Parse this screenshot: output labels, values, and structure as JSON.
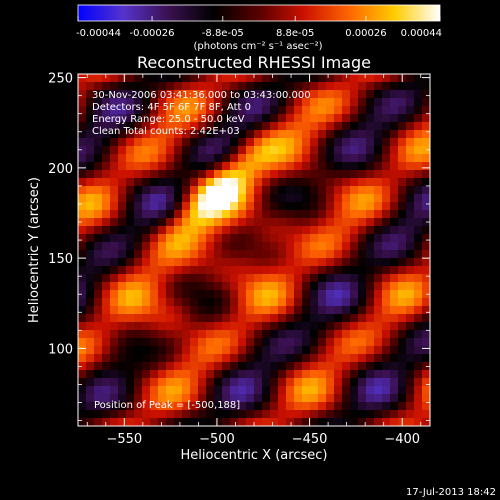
{
  "colorbar": {
    "tick_labels": [
      "-0.00044",
      "-0.00026",
      "-8.8e-05",
      "8.8e-05",
      "0.00026",
      "0.00044"
    ],
    "tick_values": [
      -0.00044,
      -0.00026,
      -8.8e-05,
      8.8e-05,
      0.00026,
      0.00044
    ],
    "range": [
      -0.00044,
      0.00044
    ],
    "unit_label": "(photons cm⁻² s⁻¹ asec⁻²)",
    "colors": [
      "#0000ff",
      "#5533cc",
      "#3a1050",
      "#000000",
      "#5a0000",
      "#cc1100",
      "#ff6600",
      "#ffcc00",
      "#ffffff"
    ]
  },
  "chart_data": {
    "type": "heatmap",
    "title": "Reconstructed RHESSI Image",
    "xlabel": "Heliocentric X (arcsec)",
    "ylabel": "Heliocentric Y (arcsec)",
    "xlim": [
      -575,
      -385
    ],
    "ylim": [
      57,
      252
    ],
    "xticks": [
      -550,
      -500,
      -450,
      -400
    ],
    "yticks": [
      100,
      150,
      200,
      250
    ],
    "annotations": [
      "30-Nov-2006 03:41:36.000 to 03:43:00.000",
      "Detectors: 4F 5F 6F 7F 8F, Att 0",
      "Energy Range: 25.0 - 50.0 keV",
      "Clean     Total counts: 2.42E+03"
    ],
    "peak_label": "Position of Peak = [-500,188]",
    "peak": [
      -500,
      188
    ],
    "bright_ridges": [
      {
        "peak": [
          -500,
          188
        ],
        "direction": [
          1,
          1
        ]
      },
      {
        "peak": [
          -470,
          165
        ],
        "direction": [
          1,
          1
        ]
      },
      {
        "peak": [
          -520,
          120
        ],
        "direction": [
          1,
          1
        ]
      }
    ],
    "grid": false
  },
  "footer": {
    "timestamp": "17-Jul-2013 18:42"
  }
}
